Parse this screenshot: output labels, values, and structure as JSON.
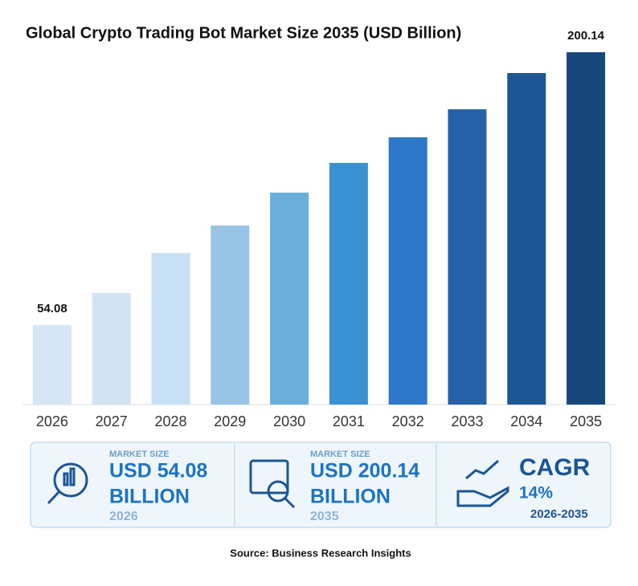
{
  "chart_data": {
    "type": "bar",
    "title": "Global Crypto Trading Bot Market Size 2035 (USD Billion)",
    "categories": [
      "2026",
      "2027",
      "2028",
      "2029",
      "2030",
      "2031",
      "2032",
      "2033",
      "2034",
      "2035"
    ],
    "values": [
      54.08,
      71.3,
      92.7,
      107.4,
      125.0,
      140.9,
      154.6,
      169.6,
      189.0,
      200.14
    ],
    "value_labels": [
      "54.08",
      null,
      null,
      null,
      null,
      null,
      null,
      null,
      null,
      "200.14"
    ],
    "colors": [
      "#d6e6f6",
      "#d3e3f5",
      "#c7e0f4",
      "#98c5e5",
      "#6aaedb",
      "#3b92d3",
      "#2d78c8",
      "#2461a8",
      "#1d5595",
      "#17467a"
    ],
    "ylim": [
      11.55,
      211.55
    ]
  },
  "summary": {
    "panels": [
      {
        "caption": "MARKET SIZE",
        "value": "USD 54.08",
        "unit": "BILLION",
        "year": "2026"
      },
      {
        "caption": "MARKET SIZE",
        "value": "USD 200.14",
        "unit": "BILLION",
        "year": "2035"
      },
      {
        "value": "CAGR",
        "unit": "14%",
        "year": "2026-2035"
      }
    ]
  },
  "source": "Source: Business Research Insights"
}
